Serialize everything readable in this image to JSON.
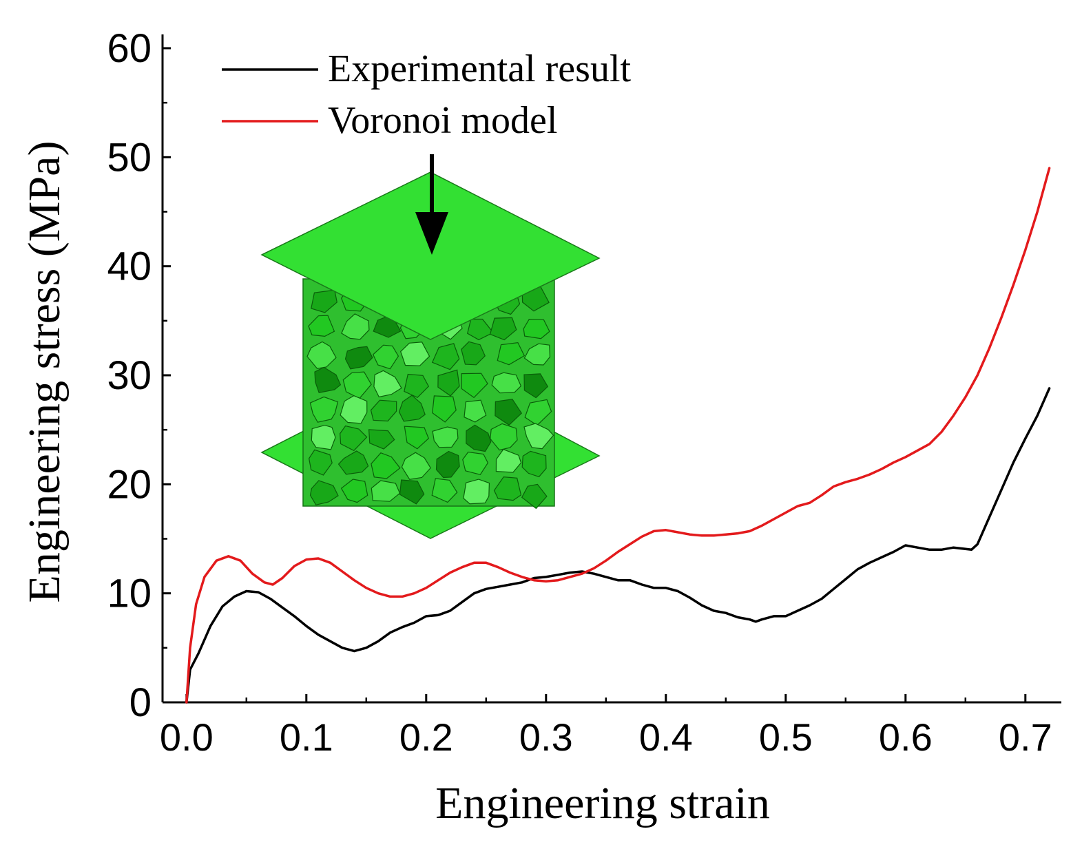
{
  "chart_data": {
    "type": "line",
    "xlabel": "Engineering strain",
    "ylabel": "Engineering stress (MPa)",
    "xlim": [
      -0.02,
      0.73
    ],
    "ylim": [
      0,
      60
    ],
    "x_ticks": [
      "0.0",
      "0.1",
      "0.2",
      "0.3",
      "0.4",
      "0.5",
      "0.6",
      "0.7"
    ],
    "x_tick_values": [
      0.0,
      0.1,
      0.2,
      0.3,
      0.4,
      0.5,
      0.6,
      0.7
    ],
    "y_ticks": [
      "0",
      "10",
      "20",
      "30",
      "40",
      "50",
      "60"
    ],
    "y_tick_values": [
      0,
      10,
      20,
      30,
      40,
      50,
      60
    ],
    "legend_position": "top-left",
    "series": [
      {
        "name": "Experimental result",
        "color": "#000000",
        "points": [
          [
            0,
            0
          ],
          [
            0.003,
            3
          ],
          [
            0.01,
            4.5
          ],
          [
            0.02,
            7
          ],
          [
            0.03,
            8.8
          ],
          [
            0.04,
            9.7
          ],
          [
            0.05,
            10.2
          ],
          [
            0.06,
            10.1
          ],
          [
            0.07,
            9.5
          ],
          [
            0.08,
            8.7
          ],
          [
            0.09,
            7.9
          ],
          [
            0.1,
            7
          ],
          [
            0.11,
            6.2
          ],
          [
            0.12,
            5.6
          ],
          [
            0.13,
            5
          ],
          [
            0.14,
            4.7
          ],
          [
            0.15,
            5
          ],
          [
            0.16,
            5.6
          ],
          [
            0.17,
            6.4
          ],
          [
            0.18,
            6.9
          ],
          [
            0.19,
            7.3
          ],
          [
            0.2,
            7.9
          ],
          [
            0.21,
            8
          ],
          [
            0.22,
            8.4
          ],
          [
            0.23,
            9.2
          ],
          [
            0.24,
            10
          ],
          [
            0.25,
            10.4
          ],
          [
            0.26,
            10.6
          ],
          [
            0.27,
            10.8
          ],
          [
            0.28,
            11
          ],
          [
            0.29,
            11.4
          ],
          [
            0.3,
            11.5
          ],
          [
            0.31,
            11.7
          ],
          [
            0.32,
            11.9
          ],
          [
            0.33,
            12
          ],
          [
            0.34,
            11.8
          ],
          [
            0.35,
            11.5
          ],
          [
            0.36,
            11.2
          ],
          [
            0.37,
            11.2
          ],
          [
            0.38,
            10.8
          ],
          [
            0.39,
            10.5
          ],
          [
            0.4,
            10.5
          ],
          [
            0.41,
            10.2
          ],
          [
            0.42,
            9.6
          ],
          [
            0.43,
            8.9
          ],
          [
            0.44,
            8.4
          ],
          [
            0.45,
            8.2
          ],
          [
            0.46,
            7.8
          ],
          [
            0.47,
            7.6
          ],
          [
            0.475,
            7.4
          ],
          [
            0.48,
            7.6
          ],
          [
            0.49,
            7.9
          ],
          [
            0.5,
            7.9
          ],
          [
            0.51,
            8.4
          ],
          [
            0.52,
            8.9
          ],
          [
            0.53,
            9.5
          ],
          [
            0.54,
            10.4
          ],
          [
            0.55,
            11.3
          ],
          [
            0.56,
            12.2
          ],
          [
            0.57,
            12.8
          ],
          [
            0.58,
            13.3
          ],
          [
            0.59,
            13.8
          ],
          [
            0.6,
            14.4
          ],
          [
            0.61,
            14.2
          ],
          [
            0.62,
            14
          ],
          [
            0.63,
            14
          ],
          [
            0.64,
            14.2
          ],
          [
            0.655,
            14
          ],
          [
            0.66,
            14.5
          ],
          [
            0.67,
            17
          ],
          [
            0.68,
            19.5
          ],
          [
            0.69,
            22
          ],
          [
            0.7,
            24.2
          ],
          [
            0.71,
            26.3
          ],
          [
            0.72,
            28.8
          ]
        ]
      },
      {
        "name": "Voronoi model",
        "color": "#e31a1c",
        "points": [
          [
            0,
            0
          ],
          [
            0.003,
            5
          ],
          [
            0.008,
            9
          ],
          [
            0.015,
            11.5
          ],
          [
            0.025,
            13
          ],
          [
            0.035,
            13.4
          ],
          [
            0.045,
            13
          ],
          [
            0.055,
            11.8
          ],
          [
            0.065,
            11
          ],
          [
            0.072,
            10.8
          ],
          [
            0.08,
            11.4
          ],
          [
            0.09,
            12.5
          ],
          [
            0.1,
            13.1
          ],
          [
            0.11,
            13.2
          ],
          [
            0.12,
            12.8
          ],
          [
            0.13,
            12
          ],
          [
            0.14,
            11.2
          ],
          [
            0.15,
            10.5
          ],
          [
            0.16,
            10
          ],
          [
            0.17,
            9.7
          ],
          [
            0.18,
            9.7
          ],
          [
            0.19,
            10
          ],
          [
            0.2,
            10.5
          ],
          [
            0.21,
            11.2
          ],
          [
            0.22,
            11.9
          ],
          [
            0.23,
            12.4
          ],
          [
            0.24,
            12.8
          ],
          [
            0.25,
            12.8
          ],
          [
            0.26,
            12.4
          ],
          [
            0.27,
            11.9
          ],
          [
            0.28,
            11.5
          ],
          [
            0.29,
            11.2
          ],
          [
            0.3,
            11.1
          ],
          [
            0.31,
            11.2
          ],
          [
            0.32,
            11.5
          ],
          [
            0.33,
            11.8
          ],
          [
            0.34,
            12.3
          ],
          [
            0.35,
            13
          ],
          [
            0.36,
            13.8
          ],
          [
            0.37,
            14.5
          ],
          [
            0.38,
            15.2
          ],
          [
            0.39,
            15.7
          ],
          [
            0.4,
            15.8
          ],
          [
            0.41,
            15.6
          ],
          [
            0.42,
            15.4
          ],
          [
            0.43,
            15.3
          ],
          [
            0.44,
            15.3
          ],
          [
            0.45,
            15.4
          ],
          [
            0.46,
            15.5
          ],
          [
            0.47,
            15.7
          ],
          [
            0.48,
            16.2
          ],
          [
            0.49,
            16.8
          ],
          [
            0.5,
            17.4
          ],
          [
            0.51,
            18
          ],
          [
            0.52,
            18.3
          ],
          [
            0.53,
            19
          ],
          [
            0.54,
            19.8
          ],
          [
            0.55,
            20.2
          ],
          [
            0.56,
            20.5
          ],
          [
            0.57,
            20.9
          ],
          [
            0.58,
            21.4
          ],
          [
            0.59,
            22
          ],
          [
            0.6,
            22.5
          ],
          [
            0.61,
            23.1
          ],
          [
            0.62,
            23.7
          ],
          [
            0.63,
            24.8
          ],
          [
            0.64,
            26.3
          ],
          [
            0.65,
            28
          ],
          [
            0.66,
            30
          ],
          [
            0.67,
            32.5
          ],
          [
            0.68,
            35.3
          ],
          [
            0.69,
            38.3
          ],
          [
            0.7,
            41.5
          ],
          [
            0.71,
            45
          ],
          [
            0.72,
            49
          ]
        ]
      }
    ]
  }
}
